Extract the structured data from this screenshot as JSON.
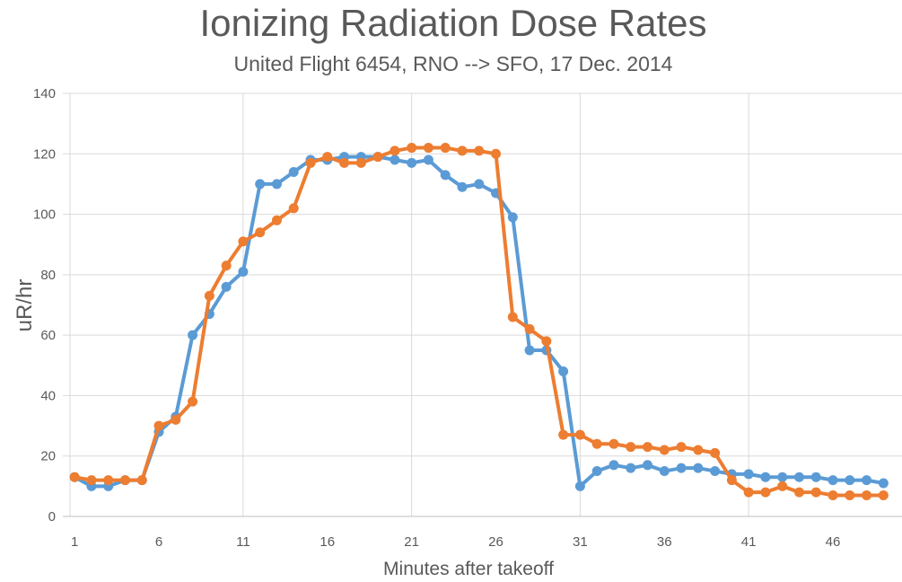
{
  "chart_data": {
    "type": "line",
    "title": "Ionizing Radiation Dose Rates",
    "subtitle": "United Flight 6454, RNO --> SFO, 17 Dec. 2014",
    "xlabel": "Minutes after takeoff",
    "ylabel": "uR/hr",
    "xlim": [
      1,
      50
    ],
    "ylim": [
      0,
      140
    ],
    "x_ticks": [
      "1",
      "6",
      "11",
      "16",
      "21",
      "26",
      "31",
      "36",
      "41",
      "46"
    ],
    "y_ticks": [
      "0",
      "20",
      "40",
      "60",
      "80",
      "100",
      "120",
      "140"
    ],
    "grid": "vertical and horizontal",
    "legend": "none",
    "x": [
      1,
      2,
      3,
      4,
      5,
      6,
      7,
      8,
      9,
      10,
      11,
      12,
      13,
      14,
      15,
      16,
      17,
      18,
      19,
      20,
      21,
      22,
      23,
      24,
      25,
      26,
      27,
      28,
      29,
      30,
      31,
      32,
      33,
      34,
      35,
      36,
      37,
      38,
      39,
      40,
      41,
      42,
      43,
      44,
      45,
      46,
      47,
      48,
      49
    ],
    "series": [
      {
        "color": "#5B9BD5",
        "values": [
          13,
          10,
          10,
          12,
          12,
          28,
          33,
          60,
          67,
          76,
          81,
          110,
          110,
          114,
          118,
          118,
          119,
          119,
          119,
          118,
          117,
          118,
          113,
          109,
          110,
          107,
          99,
          55,
          55,
          48,
          10,
          15,
          17,
          16,
          17,
          15,
          16,
          16,
          15,
          14,
          14,
          13,
          13,
          13,
          13,
          12,
          12,
          12,
          11
        ]
      },
      {
        "color": "#ED7D31",
        "values": [
          13,
          12,
          12,
          12,
          12,
          30,
          32,
          38,
          73,
          83,
          91,
          94,
          98,
          102,
          117,
          119,
          117,
          117,
          119,
          121,
          122,
          122,
          122,
          121,
          121,
          120,
          66,
          62,
          58,
          27,
          27,
          24,
          24,
          23,
          23,
          22,
          23,
          22,
          21,
          12,
          8,
          8,
          10,
          8,
          8,
          7,
          7,
          7,
          7
        ]
      }
    ]
  }
}
